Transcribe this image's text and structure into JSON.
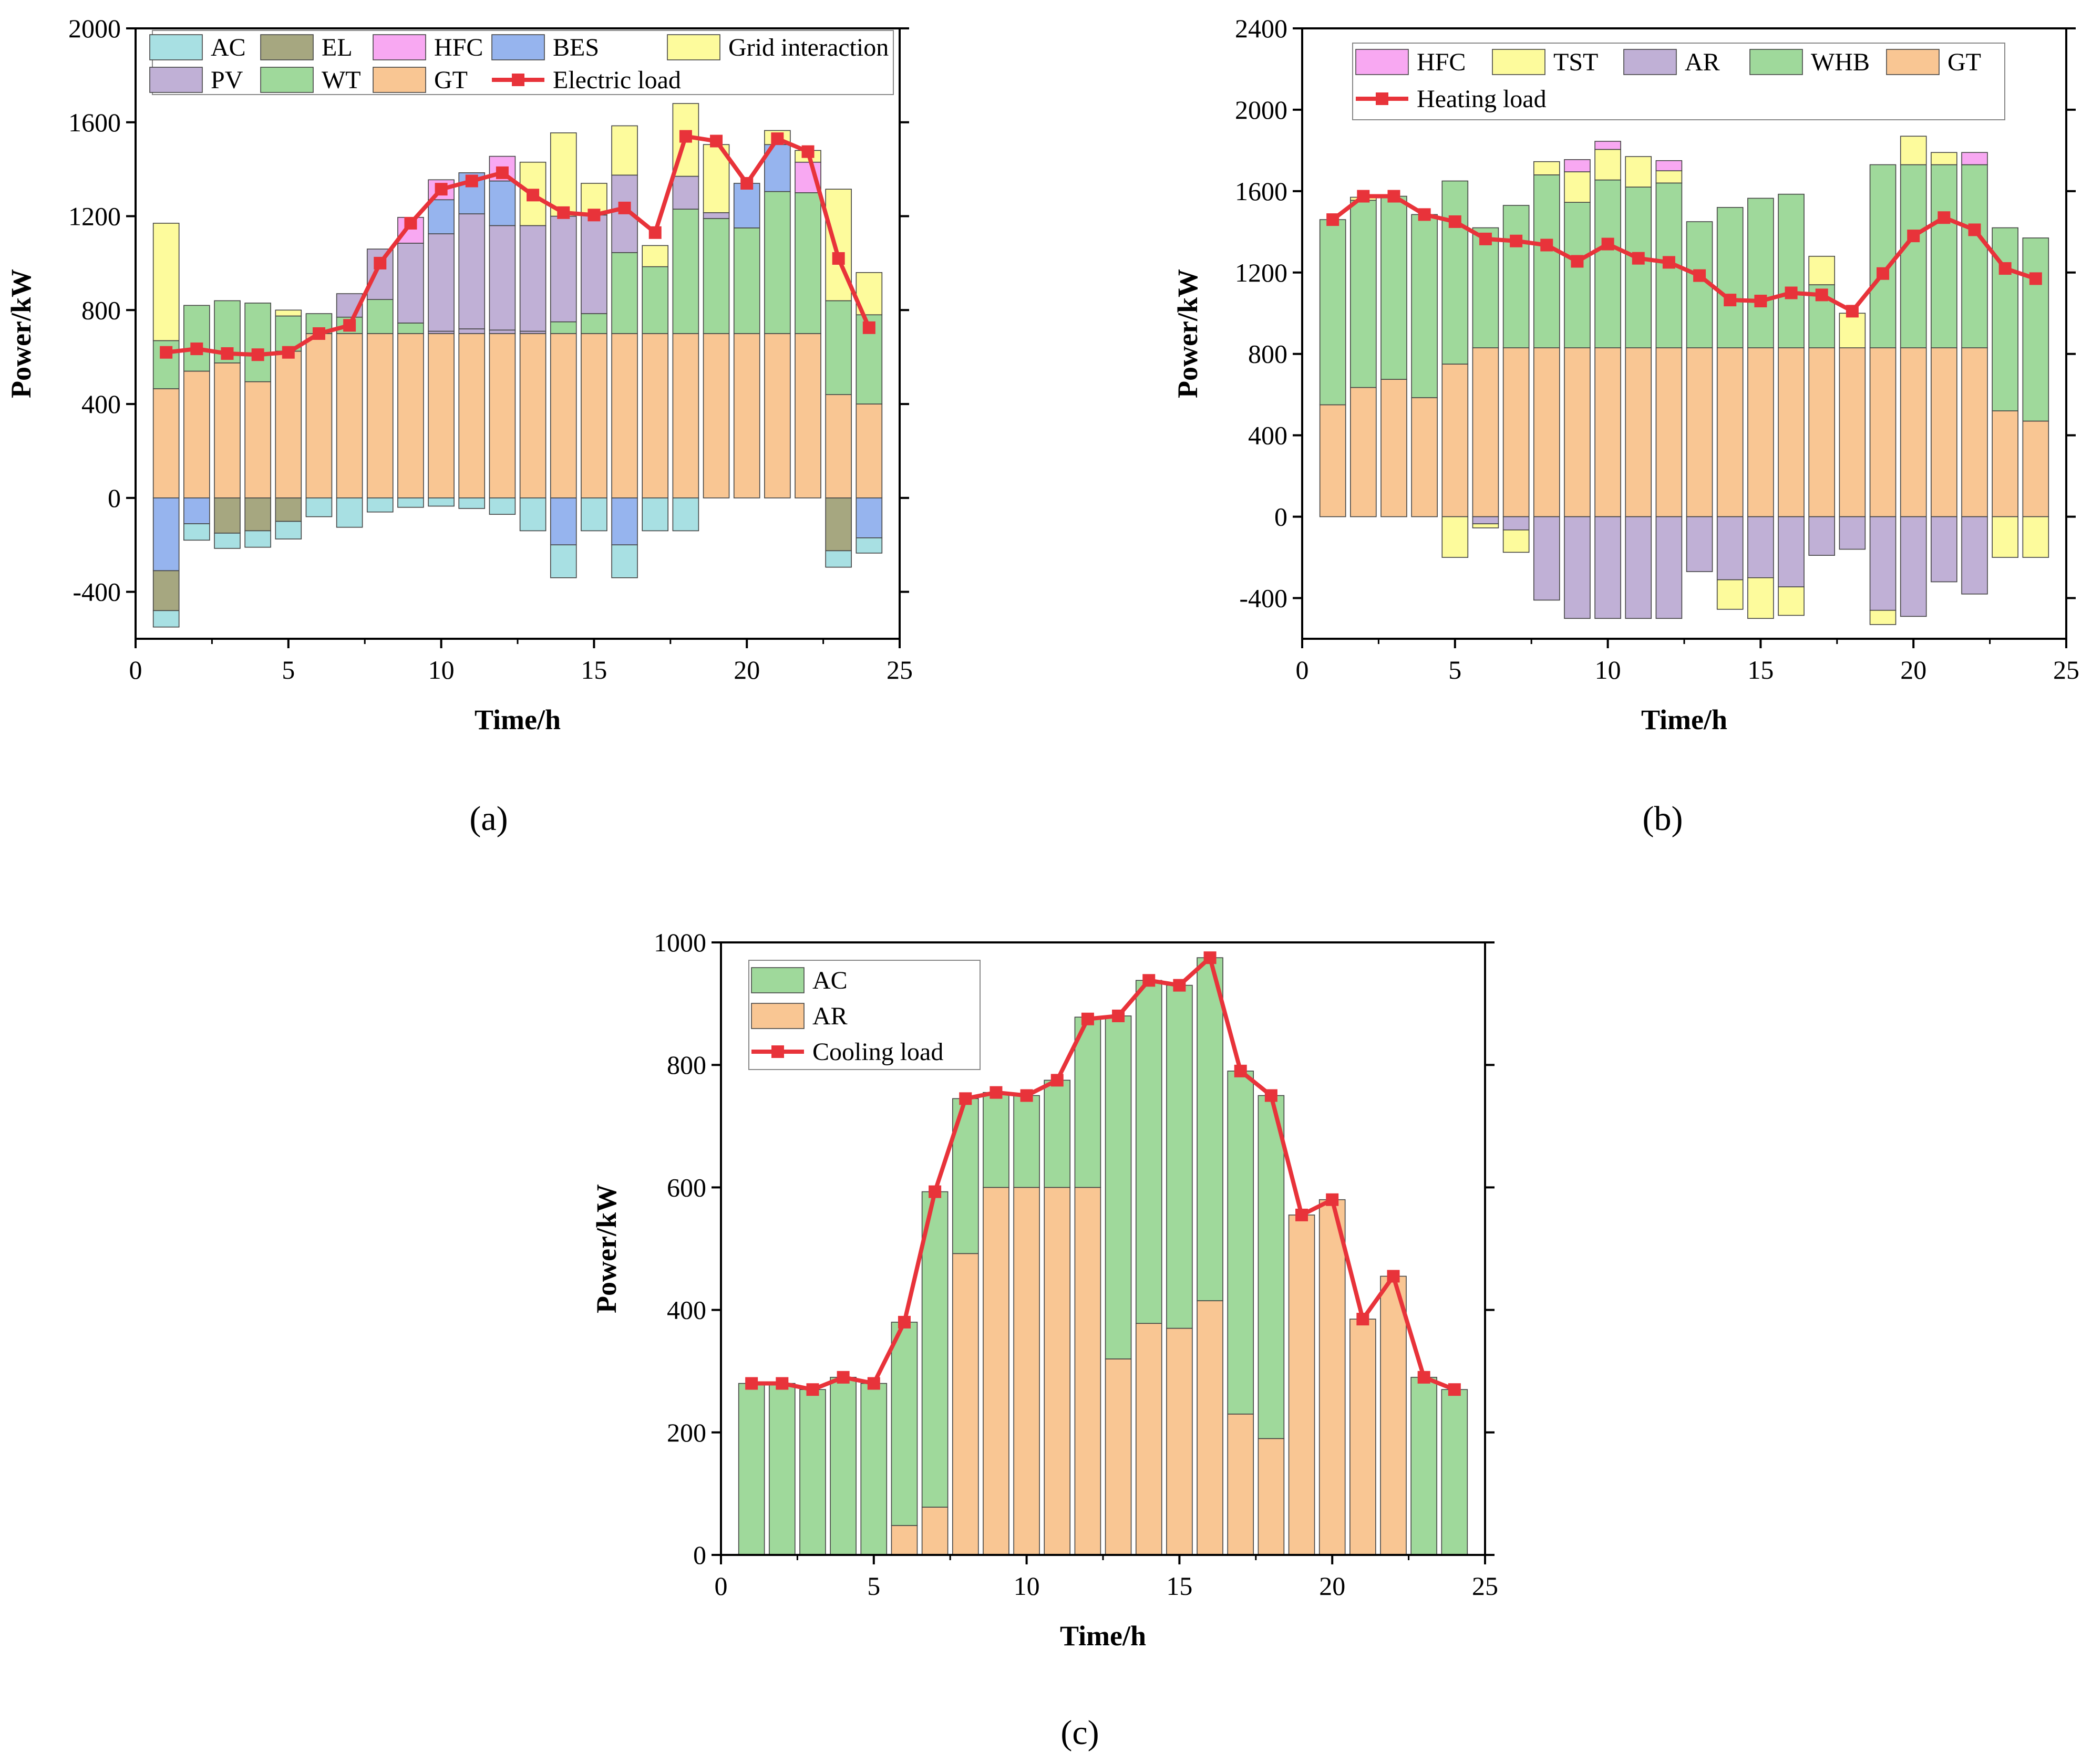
{
  "colors": {
    "AC": "#a8e0e3",
    "EL": "#a6a780",
    "HFC": "#f8a8f2",
    "BES": "#96b4ee",
    "Grid interaction": "#fdfb9c",
    "PV": "#c0b0d6",
    "WT": "#9fd99b",
    "GT": "#f9c693",
    "TST": "#fdfb9c",
    "AR_h": "#c0b0d6",
    "WHB": "#9fd99b",
    "AR_c": "#f9c693",
    "load": "#e8333a"
  },
  "chart_data": [
    {
      "type": "bar",
      "stacked": true,
      "caption": "(a)",
      "xlabel": "Time/h",
      "ylabel": "Power/kW",
      "xlim": [
        0,
        25
      ],
      "ylim": [
        -600,
        2000
      ],
      "xticks": [
        "0",
        "5",
        "10",
        "15",
        "20",
        "25"
      ],
      "yticks": [
        "-400",
        "0",
        "400",
        "800",
        "1200",
        "1600",
        "2000"
      ],
      "x": [
        1,
        2,
        3,
        4,
        5,
        6,
        7,
        8,
        9,
        10,
        11,
        12,
        13,
        14,
        15,
        16,
        17,
        18,
        19,
        20,
        21,
        22,
        23,
        24
      ],
      "legend": [
        "AC",
        "EL",
        "HFC",
        "BES",
        "Grid interaction",
        "PV",
        "WT",
        "GT",
        "Electric load"
      ],
      "legend_location": "top",
      "positive_series": [
        {
          "name": "GT",
          "color_key": "GT",
          "values": [
            465,
            540,
            575,
            495,
            625,
            700,
            700,
            700,
            700,
            700,
            700,
            700,
            700,
            700,
            700,
            700,
            700,
            700,
            700,
            700,
            700,
            700,
            440,
            400
          ]
        },
        {
          "name": "PV",
          "color_key": "PV",
          "values": [
            0,
            0,
            0,
            0,
            0,
            0,
            0,
            0,
            0,
            10,
            20,
            15,
            10,
            0,
            0,
            0,
            0,
            0,
            0,
            0,
            0,
            0,
            0,
            0
          ]
        },
        {
          "name": "WT",
          "color_key": "WT",
          "values": [
            205,
            280,
            265,
            335,
            150,
            85,
            70,
            145,
            45,
            0,
            0,
            0,
            0,
            50,
            85,
            345,
            285,
            530,
            490,
            450,
            605,
            600,
            400,
            380
          ]
        },
        {
          "name": "PV",
          "color_key": "PV",
          "values": [
            0,
            0,
            0,
            0,
            0,
            0,
            100,
            215,
            340,
            415,
            490,
            445,
            450,
            450,
            420,
            330,
            0,
            140,
            25,
            0,
            0,
            0,
            0,
            0
          ]
        },
        {
          "name": "BES",
          "color_key": "BES",
          "values": [
            0,
            0,
            0,
            0,
            0,
            0,
            0,
            0,
            0,
            145,
            175,
            190,
            0,
            0,
            0,
            0,
            0,
            0,
            0,
            190,
            200,
            0,
            0,
            0
          ]
        },
        {
          "name": "HFC",
          "color_key": "HFC",
          "values": [
            0,
            0,
            0,
            0,
            0,
            0,
            0,
            0,
            110,
            85,
            0,
            105,
            0,
            0,
            0,
            0,
            0,
            0,
            0,
            0,
            0,
            130,
            0,
            0
          ]
        },
        {
          "name": "Grid interaction",
          "color_key": "Grid interaction",
          "values": [
            500,
            0,
            0,
            0,
            25,
            0,
            0,
            0,
            0,
            0,
            0,
            0,
            270,
            355,
            135,
            210,
            90,
            310,
            290,
            0,
            60,
            50,
            475,
            180
          ]
        }
      ],
      "negative_series": [
        {
          "name": "BES",
          "color_key": "BES",
          "values": [
            -310,
            -110,
            0,
            0,
            0,
            0,
            0,
            0,
            0,
            0,
            0,
            0,
            0,
            -200,
            0,
            -200,
            0,
            0,
            0,
            0,
            0,
            0,
            0,
            -170
          ]
        },
        {
          "name": "EL",
          "color_key": "EL",
          "values": [
            -170,
            0,
            -150,
            -140,
            -100,
            0,
            0,
            0,
            0,
            0,
            0,
            0,
            0,
            0,
            0,
            0,
            0,
            0,
            0,
            0,
            0,
            0,
            -225,
            0
          ]
        },
        {
          "name": "AC",
          "color_key": "AC",
          "values": [
            -70,
            -70,
            -65,
            -70,
            -75,
            -80,
            -125,
            -60,
            -40,
            -35,
            -45,
            -70,
            -140,
            -140,
            -140,
            -140,
            -140,
            -140,
            0,
            0,
            0,
            0,
            -70,
            -65
          ]
        }
      ],
      "load": {
        "name": "Electric load",
        "values": [
          620,
          635,
          615,
          610,
          620,
          700,
          735,
          1000,
          1170,
          1315,
          1350,
          1385,
          1290,
          1215,
          1205,
          1235,
          1130,
          1540,
          1520,
          1340,
          1530,
          1475,
          1020,
          725
        ]
      }
    },
    {
      "type": "bar",
      "stacked": true,
      "caption": "(b)",
      "xlabel": "Time/h",
      "ylabel": "Power/kW",
      "xlim": [
        0,
        25
      ],
      "ylim": [
        -600,
        2400
      ],
      "xticks": [
        "0",
        "5",
        "10",
        "15",
        "20",
        "25"
      ],
      "yticks": [
        "-400",
        "0",
        "400",
        "800",
        "1200",
        "1600",
        "2000",
        "2400"
      ],
      "x": [
        1,
        2,
        3,
        4,
        5,
        6,
        7,
        8,
        9,
        10,
        11,
        12,
        13,
        14,
        15,
        16,
        17,
        18,
        19,
        20,
        21,
        22,
        23,
        24
      ],
      "legend": [
        "HFC",
        "TST",
        "AR",
        "WHB",
        "GT",
        "Heating load"
      ],
      "legend_location": "top",
      "positive_series": [
        {
          "name": "GT",
          "color_key": "GT",
          "values": [
            550,
            635,
            675,
            585,
            750,
            830,
            830,
            830,
            830,
            830,
            830,
            830,
            830,
            830,
            830,
            830,
            830,
            830,
            830,
            830,
            830,
            830,
            520,
            470
          ]
        },
        {
          "name": "WHB",
          "color_key": "WHB",
          "values": [
            910,
            920,
            900,
            900,
            900,
            590,
            700,
            850,
            715,
            825,
            790,
            810,
            620,
            690,
            735,
            755,
            310,
            0,
            900,
            900,
            900,
            900,
            900,
            900
          ]
        },
        {
          "name": "TST",
          "color_key": "TST",
          "values": [
            0,
            15,
            0,
            0,
            0,
            0,
            0,
            65,
            150,
            150,
            150,
            60,
            0,
            0,
            0,
            0,
            140,
            170,
            0,
            140,
            60,
            0,
            0,
            0
          ]
        },
        {
          "name": "HFC",
          "color_key": "HFC",
          "values": [
            0,
            0,
            0,
            0,
            0,
            0,
            0,
            0,
            60,
            40,
            0,
            50,
            0,
            0,
            0,
            0,
            0,
            0,
            0,
            0,
            0,
            60,
            0,
            0
          ]
        }
      ],
      "negative_series": [
        {
          "name": "AR",
          "color_key": "AR_h",
          "values": [
            0,
            0,
            0,
            0,
            0,
            -35,
            -65,
            -410,
            -500,
            -500,
            -500,
            -500,
            -270,
            -310,
            -300,
            -345,
            -190,
            -160,
            -460,
            -490,
            -320,
            -380,
            0,
            0
          ]
        },
        {
          "name": "TST",
          "color_key": "TST",
          "values": [
            0,
            0,
            0,
            0,
            -200,
            -20,
            -110,
            0,
            0,
            0,
            0,
            0,
            0,
            -145,
            -200,
            -140,
            0,
            0,
            -70,
            0,
            0,
            0,
            -200,
            -200
          ]
        }
      ],
      "load": {
        "name": "Heating load",
        "values": [
          1460,
          1575,
          1575,
          1485,
          1450,
          1365,
          1355,
          1335,
          1255,
          1340,
          1270,
          1250,
          1185,
          1065,
          1060,
          1100,
          1090,
          1010,
          1195,
          1380,
          1470,
          1410,
          1220,
          1170
        ]
      }
    },
    {
      "type": "bar",
      "stacked": true,
      "caption": "(c)",
      "xlabel": "Time/h",
      "ylabel": "Power/kW",
      "xlim": [
        0,
        25
      ],
      "ylim": [
        0,
        1000
      ],
      "xticks": [
        "0",
        "5",
        "10",
        "15",
        "20",
        "25"
      ],
      "yticks": [
        "0",
        "200",
        "400",
        "600",
        "800",
        "1000"
      ],
      "x": [
        1,
        2,
        3,
        4,
        5,
        6,
        7,
        8,
        9,
        10,
        11,
        12,
        13,
        14,
        15,
        16,
        17,
        18,
        19,
        20,
        21,
        22,
        23,
        24
      ],
      "legend": [
        "AC",
        "AR",
        "Cooling load"
      ],
      "legend_location": "top-left",
      "positive_series": [
        {
          "name": "AR",
          "color_key": "AR_c",
          "values": [
            0,
            0,
            0,
            0,
            0,
            48,
            78,
            492,
            600,
            600,
            600,
            600,
            320,
            378,
            370,
            415,
            230,
            190,
            555,
            580,
            385,
            455,
            0,
            0
          ]
        },
        {
          "name": "AC",
          "color_key": "WT",
          "values": [
            280,
            280,
            270,
            290,
            280,
            332,
            515,
            253,
            155,
            150,
            175,
            278,
            560,
            560,
            560,
            560,
            560,
            560,
            0,
            0,
            0,
            0,
            290,
            270
          ]
        }
      ],
      "negative_series": [],
      "load": {
        "name": "Cooling load",
        "values": [
          280,
          280,
          270,
          290,
          280,
          380,
          593,
          745,
          755,
          750,
          775,
          875,
          880,
          938,
          930,
          975,
          790,
          750,
          555,
          580,
          385,
          455,
          290,
          270
        ]
      }
    }
  ]
}
